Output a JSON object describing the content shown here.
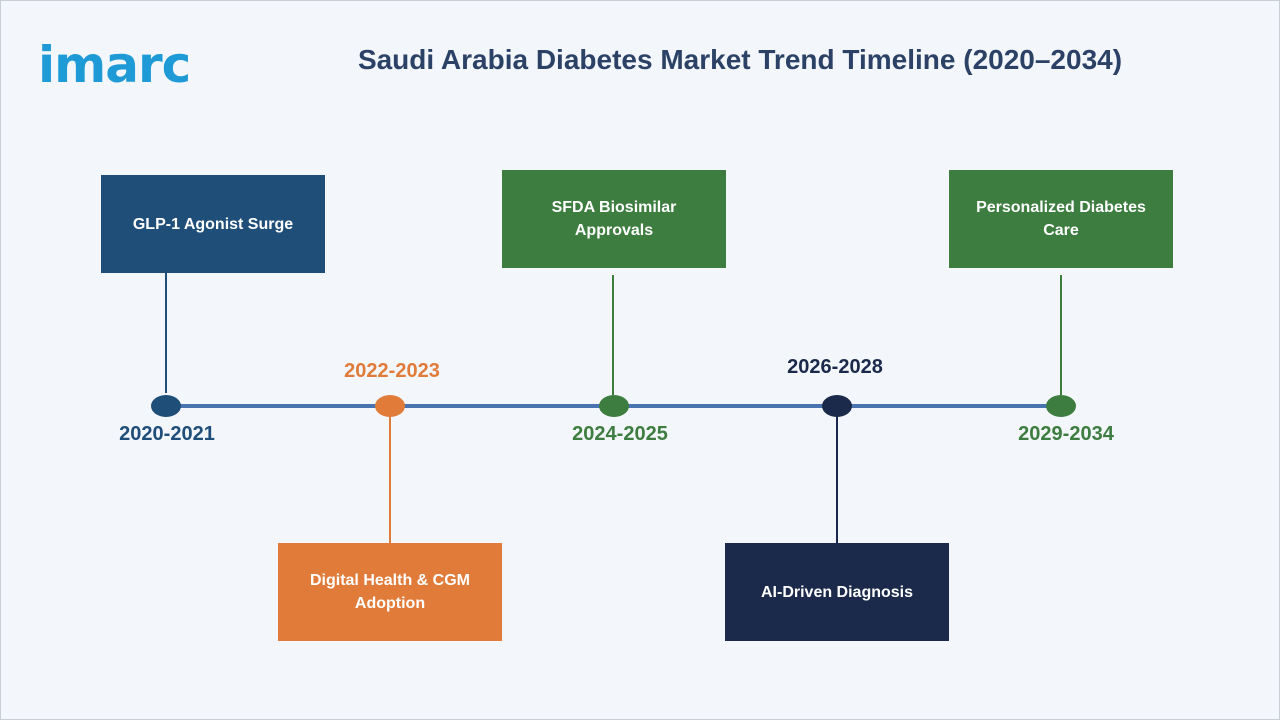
{
  "logo": {
    "text": "imarc",
    "color": "#1e9ad6"
  },
  "title": "Saudi Arabia Diabetes Market Trend Timeline (2020–2034)",
  "colors": {
    "axis": "#4a74b0",
    "blue": "#1f4e79",
    "orange": "#e07b39",
    "green": "#3d7d3f",
    "navy": "#1b2a4a"
  },
  "milestones": [
    {
      "period": "2020-2021",
      "label": "GLP-1 Agonist Surge",
      "position": "above"
    },
    {
      "period": "2022-2023",
      "label": "Digital Health & CGM Adoption",
      "position": "below"
    },
    {
      "period": "2024-2025",
      "label": "SFDA Biosimilar Approvals",
      "position": "above"
    },
    {
      "period": "2026-2028",
      "label": "AI-Driven Diagnosis",
      "position": "below"
    },
    {
      "period": "2029-2034",
      "label": "Personalized Diabetes Care",
      "position": "above"
    }
  ]
}
